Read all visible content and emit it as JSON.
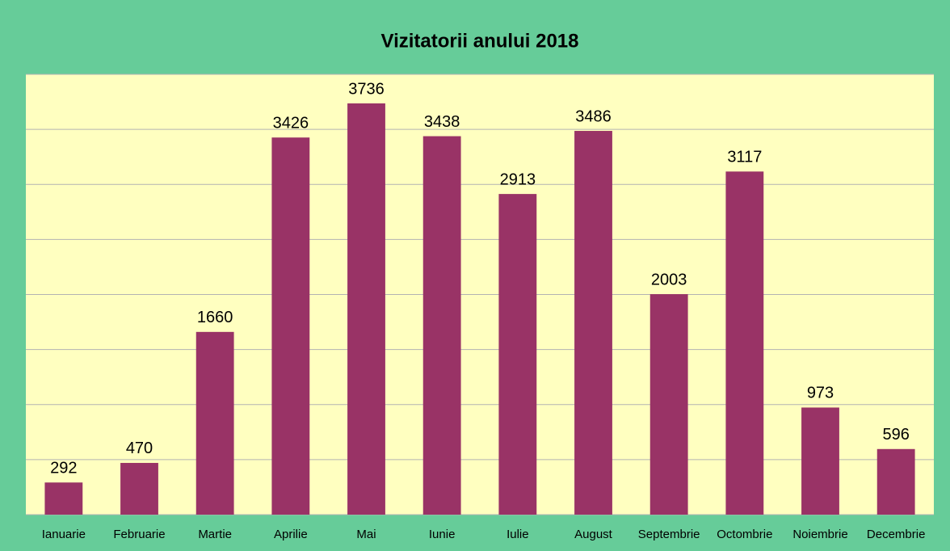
{
  "chart_data": {
    "type": "bar",
    "title": "Vizitatorii anului 2018",
    "categories": [
      "Ianuarie",
      "Februarie",
      "Martie",
      "Aprilie",
      "Mai",
      "Iunie",
      "Iulie",
      "August",
      "Septembrie",
      "Octombrie",
      "Noiembrie",
      "Decembrie"
    ],
    "values": [
      292,
      470,
      1660,
      3426,
      3736,
      3438,
      2913,
      3486,
      2003,
      3117,
      973,
      596
    ],
    "color": "#993366",
    "ylim": [
      0,
      4000
    ],
    "yticks": [
      0,
      500,
      1000,
      1500,
      2000,
      2500,
      3000,
      3500,
      4000
    ],
    "grid": true
  }
}
